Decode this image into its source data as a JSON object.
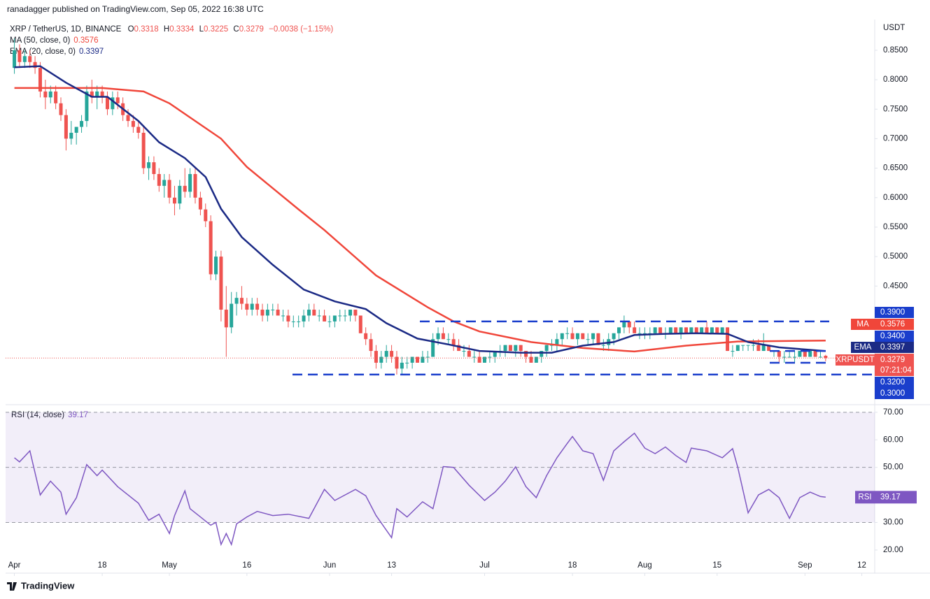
{
  "header": "ranadagger published on TradingView.com, Sep 05, 2022 16:38 UTC",
  "footer": "TradingView",
  "chart_data": {
    "type": "candlestick",
    "title": "XRP / TetherUS, 1D, BINANCE",
    "ohlc_labels": [
      "O",
      "H",
      "L",
      "C"
    ],
    "change": "−0.0038 (−1.15%)",
    "unit": "USDT",
    "up_color": "#26a69a",
    "down_color": "#ef5350",
    "ylim": [
      0.25,
      0.902
    ],
    "yticks": [
      {
        "value": 0.45,
        "label": "0.4500"
      },
      {
        "value": 0.5,
        "label": "0.5000"
      },
      {
        "value": 0.55,
        "label": "0.5500"
      },
      {
        "value": 0.6,
        "label": "0.6000"
      },
      {
        "value": 0.65,
        "label": "0.6500"
      },
      {
        "value": 0.7,
        "label": "0.7000"
      },
      {
        "value": 0.75,
        "label": "0.7500"
      },
      {
        "value": 0.8,
        "label": "0.8000"
      },
      {
        "value": 0.85,
        "label": "0.8500"
      }
    ],
    "xlim": [
      -1.7,
      166.5
    ],
    "xticks": [
      {
        "value": 0,
        "label": "Apr"
      },
      {
        "value": 17,
        "label": "18"
      },
      {
        "value": 30,
        "label": "May"
      },
      {
        "value": 45,
        "label": "16"
      },
      {
        "value": 61,
        "label": "Jun"
      },
      {
        "value": 73,
        "label": "13"
      },
      {
        "value": 91,
        "label": "Jul"
      },
      {
        "value": 108,
        "label": "18"
      },
      {
        "value": 122,
        "label": "Aug"
      },
      {
        "value": 136,
        "label": "15"
      },
      {
        "value": 153,
        "label": "Sep"
      },
      {
        "value": 164,
        "label": "12"
      }
    ],
    "grid": false,
    "ohlc": [
      [
        0.82,
        0.87,
        0.81,
        0.85
      ],
      [
        0.85,
        0.86,
        0.82,
        0.83
      ],
      [
        0.83,
        0.85,
        0.82,
        0.84
      ],
      [
        0.84,
        0.85,
        0.82,
        0.83
      ],
      [
        0.83,
        0.84,
        0.81,
        0.82
      ],
      [
        0.82,
        0.83,
        0.77,
        0.78
      ],
      [
        0.78,
        0.8,
        0.75,
        0.77
      ],
      [
        0.77,
        0.79,
        0.76,
        0.78
      ],
      [
        0.78,
        0.79,
        0.75,
        0.76
      ],
      [
        0.76,
        0.77,
        0.73,
        0.74
      ],
      [
        0.74,
        0.75,
        0.68,
        0.7
      ],
      [
        0.7,
        0.73,
        0.69,
        0.71
      ],
      [
        0.71,
        0.72,
        0.69,
        0.72
      ],
      [
        0.72,
        0.74,
        0.71,
        0.73
      ],
      [
        0.73,
        0.79,
        0.72,
        0.78
      ],
      [
        0.78,
        0.8,
        0.76,
        0.77
      ],
      [
        0.77,
        0.79,
        0.75,
        0.78
      ],
      [
        0.78,
        0.79,
        0.76,
        0.77
      ],
      [
        0.77,
        0.78,
        0.74,
        0.75
      ],
      [
        0.75,
        0.78,
        0.74,
        0.77
      ],
      [
        0.77,
        0.78,
        0.75,
        0.76
      ],
      [
        0.76,
        0.77,
        0.73,
        0.74
      ],
      [
        0.74,
        0.75,
        0.72,
        0.73
      ],
      [
        0.73,
        0.74,
        0.71,
        0.72
      ],
      [
        0.72,
        0.73,
        0.7,
        0.71
      ],
      [
        0.71,
        0.72,
        0.64,
        0.65
      ],
      [
        0.65,
        0.67,
        0.63,
        0.66
      ],
      [
        0.66,
        0.67,
        0.63,
        0.64
      ],
      [
        0.64,
        0.65,
        0.61,
        0.62
      ],
      [
        0.62,
        0.64,
        0.6,
        0.63
      ],
      [
        0.63,
        0.64,
        0.59,
        0.6
      ],
      [
        0.6,
        0.62,
        0.57,
        0.59
      ],
      [
        0.59,
        0.63,
        0.58,
        0.62
      ],
      [
        0.62,
        0.65,
        0.6,
        0.61
      ],
      [
        0.61,
        0.65,
        0.6,
        0.64
      ],
      [
        0.64,
        0.65,
        0.59,
        0.6
      ],
      [
        0.6,
        0.61,
        0.57,
        0.58
      ],
      [
        0.58,
        0.59,
        0.55,
        0.56
      ],
      [
        0.56,
        0.57,
        0.46,
        0.47
      ],
      [
        0.47,
        0.51,
        0.46,
        0.5
      ],
      [
        0.5,
        0.51,
        0.39,
        0.41
      ],
      [
        0.41,
        0.45,
        0.33,
        0.38
      ],
      [
        0.38,
        0.44,
        0.37,
        0.42
      ],
      [
        0.42,
        0.44,
        0.4,
        0.43
      ],
      [
        0.43,
        0.45,
        0.41,
        0.42
      ],
      [
        0.42,
        0.43,
        0.4,
        0.41
      ],
      [
        0.41,
        0.43,
        0.4,
        0.42
      ],
      [
        0.42,
        0.43,
        0.4,
        0.41
      ],
      [
        0.41,
        0.42,
        0.39,
        0.4
      ],
      [
        0.4,
        0.42,
        0.39,
        0.41
      ],
      [
        0.41,
        0.42,
        0.4,
        0.41
      ],
      [
        0.41,
        0.42,
        0.4,
        0.4
      ],
      [
        0.4,
        0.41,
        0.39,
        0.4
      ],
      [
        0.4,
        0.41,
        0.38,
        0.39
      ],
      [
        0.39,
        0.4,
        0.38,
        0.39
      ],
      [
        0.39,
        0.4,
        0.38,
        0.39
      ],
      [
        0.39,
        0.41,
        0.38,
        0.4
      ],
      [
        0.4,
        0.42,
        0.39,
        0.41
      ],
      [
        0.41,
        0.42,
        0.4,
        0.4
      ],
      [
        0.4,
        0.41,
        0.39,
        0.4
      ],
      [
        0.4,
        0.41,
        0.39,
        0.39
      ],
      [
        0.39,
        0.4,
        0.38,
        0.39
      ],
      [
        0.39,
        0.4,
        0.38,
        0.4
      ],
      [
        0.4,
        0.41,
        0.39,
        0.4
      ],
      [
        0.4,
        0.41,
        0.39,
        0.4
      ],
      [
        0.4,
        0.41,
        0.39,
        0.41
      ],
      [
        0.41,
        0.41,
        0.39,
        0.4
      ],
      [
        0.4,
        0.4,
        0.37,
        0.37
      ],
      [
        0.37,
        0.38,
        0.35,
        0.36
      ],
      [
        0.36,
        0.37,
        0.33,
        0.34
      ],
      [
        0.34,
        0.35,
        0.31,
        0.32
      ],
      [
        0.32,
        0.34,
        0.31,
        0.33
      ],
      [
        0.33,
        0.35,
        0.32,
        0.34
      ],
      [
        0.34,
        0.35,
        0.32,
        0.33
      ],
      [
        0.33,
        0.34,
        0.3,
        0.31
      ],
      [
        0.31,
        0.33,
        0.3,
        0.32
      ],
      [
        0.32,
        0.33,
        0.31,
        0.32
      ],
      [
        0.32,
        0.33,
        0.31,
        0.33
      ],
      [
        0.33,
        0.33,
        0.32,
        0.32
      ],
      [
        0.32,
        0.34,
        0.32,
        0.33
      ],
      [
        0.33,
        0.34,
        0.32,
        0.33
      ],
      [
        0.33,
        0.37,
        0.33,
        0.36
      ],
      [
        0.36,
        0.38,
        0.35,
        0.37
      ],
      [
        0.37,
        0.38,
        0.36,
        0.36
      ],
      [
        0.36,
        0.37,
        0.35,
        0.36
      ],
      [
        0.36,
        0.37,
        0.34,
        0.35
      ],
      [
        0.35,
        0.36,
        0.34,
        0.34
      ],
      [
        0.34,
        0.35,
        0.33,
        0.34
      ],
      [
        0.34,
        0.35,
        0.33,
        0.33
      ],
      [
        0.33,
        0.34,
        0.32,
        0.33
      ],
      [
        0.33,
        0.34,
        0.32,
        0.32
      ],
      [
        0.32,
        0.33,
        0.32,
        0.33
      ],
      [
        0.33,
        0.34,
        0.32,
        0.33
      ],
      [
        0.33,
        0.34,
        0.32,
        0.34
      ],
      [
        0.34,
        0.35,
        0.33,
        0.34
      ],
      [
        0.34,
        0.35,
        0.33,
        0.35
      ],
      [
        0.35,
        0.35,
        0.34,
        0.34
      ],
      [
        0.34,
        0.35,
        0.33,
        0.35
      ],
      [
        0.35,
        0.35,
        0.33,
        0.34
      ],
      [
        0.34,
        0.34,
        0.32,
        0.33
      ],
      [
        0.33,
        0.34,
        0.32,
        0.32
      ],
      [
        0.32,
        0.33,
        0.32,
        0.33
      ],
      [
        0.33,
        0.34,
        0.32,
        0.34
      ],
      [
        0.34,
        0.35,
        0.33,
        0.35
      ],
      [
        0.35,
        0.36,
        0.34,
        0.35
      ],
      [
        0.35,
        0.37,
        0.34,
        0.36
      ],
      [
        0.36,
        0.37,
        0.35,
        0.37
      ],
      [
        0.37,
        0.38,
        0.36,
        0.37
      ],
      [
        0.37,
        0.38,
        0.36,
        0.36
      ],
      [
        0.36,
        0.37,
        0.35,
        0.37
      ],
      [
        0.37,
        0.37,
        0.36,
        0.36
      ],
      [
        0.36,
        0.37,
        0.35,
        0.36
      ],
      [
        0.36,
        0.37,
        0.35,
        0.37
      ],
      [
        0.37,
        0.37,
        0.35,
        0.35
      ],
      [
        0.35,
        0.36,
        0.34,
        0.35
      ],
      [
        0.35,
        0.37,
        0.34,
        0.36
      ],
      [
        0.36,
        0.37,
        0.35,
        0.37
      ],
      [
        0.37,
        0.38,
        0.36,
        0.38
      ],
      [
        0.38,
        0.4,
        0.37,
        0.39
      ],
      [
        0.39,
        0.39,
        0.37,
        0.38
      ],
      [
        0.38,
        0.39,
        0.37,
        0.37
      ],
      [
        0.37,
        0.38,
        0.36,
        0.37
      ],
      [
        0.37,
        0.38,
        0.36,
        0.37
      ],
      [
        0.37,
        0.38,
        0.36,
        0.37
      ],
      [
        0.37,
        0.38,
        0.37,
        0.38
      ],
      [
        0.38,
        0.38,
        0.37,
        0.37
      ],
      [
        0.37,
        0.38,
        0.36,
        0.37
      ],
      [
        0.37,
        0.38,
        0.37,
        0.38
      ],
      [
        0.38,
        0.38,
        0.37,
        0.37
      ],
      [
        0.37,
        0.38,
        0.36,
        0.38
      ],
      [
        0.38,
        0.38,
        0.37,
        0.37
      ],
      [
        0.37,
        0.38,
        0.37,
        0.38
      ],
      [
        0.38,
        0.38,
        0.37,
        0.37
      ],
      [
        0.37,
        0.38,
        0.37,
        0.38
      ],
      [
        0.38,
        0.39,
        0.37,
        0.37
      ],
      [
        0.37,
        0.38,
        0.37,
        0.38
      ],
      [
        0.38,
        0.38,
        0.37,
        0.37
      ],
      [
        0.37,
        0.38,
        0.37,
        0.38
      ],
      [
        0.38,
        0.38,
        0.34,
        0.34
      ],
      [
        0.34,
        0.35,
        0.33,
        0.34
      ],
      [
        0.34,
        0.35,
        0.34,
        0.35
      ],
      [
        0.35,
        0.35,
        0.34,
        0.35
      ],
      [
        0.35,
        0.35,
        0.34,
        0.35
      ],
      [
        0.35,
        0.36,
        0.34,
        0.35
      ],
      [
        0.35,
        0.36,
        0.34,
        0.34
      ],
      [
        0.34,
        0.37,
        0.34,
        0.35
      ],
      [
        0.35,
        0.35,
        0.34,
        0.34
      ],
      [
        0.34,
        0.34,
        0.33,
        0.34
      ],
      [
        0.34,
        0.34,
        0.32,
        0.33
      ],
      [
        0.33,
        0.34,
        0.32,
        0.33
      ],
      [
        0.33,
        0.34,
        0.33,
        0.33
      ],
      [
        0.33,
        0.34,
        0.32,
        0.33
      ],
      [
        0.33,
        0.34,
        0.33,
        0.34
      ],
      [
        0.34,
        0.34,
        0.33,
        0.33
      ],
      [
        0.33,
        0.34,
        0.33,
        0.34
      ],
      [
        0.34,
        0.34,
        0.33,
        0.33
      ],
      [
        0.33,
        0.34,
        0.33,
        0.33
      ],
      [
        0.3318,
        0.3334,
        0.3225,
        0.3279
      ]
    ],
    "lines": [
      {
        "name": "MA (50, close, 0)",
        "short": "MA",
        "color": "#f0463a",
        "x": [
          0,
          17,
          25,
          30,
          40,
          45,
          55,
          60,
          70,
          80,
          85,
          90,
          100,
          110,
          120,
          130,
          140,
          157
        ],
        "values": [
          0.786,
          0.786,
          0.78,
          0.76,
          0.7,
          0.652,
          0.58,
          0.545,
          0.468,
          0.414,
          0.39,
          0.373,
          0.355,
          0.345,
          0.339,
          0.349,
          0.356,
          0.3576
        ]
      },
      {
        "name": "EMA (20, close, 0)",
        "short": "EMA",
        "color": "#1b2a85",
        "x": [
          0,
          5,
          10,
          15,
          18,
          24,
          28,
          33,
          37,
          40,
          44,
          50,
          56,
          62,
          68,
          72,
          78,
          84,
          90,
          98,
          104,
          110,
          116,
          120,
          126,
          132,
          138,
          142,
          148,
          157
        ],
        "values": [
          0.821,
          0.823,
          0.795,
          0.771,
          0.771,
          0.73,
          0.694,
          0.667,
          0.635,
          0.581,
          0.533,
          0.486,
          0.444,
          0.424,
          0.411,
          0.387,
          0.361,
          0.351,
          0.34,
          0.337,
          0.337,
          0.349,
          0.355,
          0.367,
          0.369,
          0.37,
          0.369,
          0.355,
          0.346,
          0.3397
        ]
      }
    ],
    "levels": [
      {
        "value": 0.39,
        "label": "0.3900"
      },
      {
        "value": 0.34,
        "label": "0.3400"
      },
      {
        "value": 0.32,
        "label": "0.3200"
      },
      {
        "value": 0.3,
        "label": "0.3000"
      }
    ],
    "level_color": "#1a3ecc",
    "symbol": "XRPUSDT",
    "countdown": "07:21:04",
    "rsi": {
      "name": "RSI (14, close)",
      "short": "RSI",
      "color": "#7e57c2",
      "ylim": [
        11.6,
        72.5
      ],
      "yticks": [
        {
          "value": 20,
          "label": "20.00"
        },
        {
          "value": 30,
          "label": "30.00"
        },
        {
          "value": 40,
          "label": "40.00"
        },
        {
          "value": 50,
          "label": "50.00"
        },
        {
          "value": 60,
          "label": "60.00"
        },
        {
          "value": 70,
          "label": "70.00"
        }
      ],
      "levels": [
        30,
        50,
        70
      ],
      "x": [
        0,
        1,
        3,
        5,
        7,
        9,
        10,
        12,
        14,
        16,
        17,
        20,
        24,
        26,
        28,
        30,
        31,
        33,
        34,
        36,
        38,
        39,
        40,
        41,
        42,
        43,
        45,
        47,
        50,
        53,
        57,
        60,
        62,
        66,
        68,
        70,
        73,
        74,
        76,
        79,
        81,
        83,
        85,
        88,
        91,
        93,
        95,
        97,
        99,
        101,
        103,
        105,
        107,
        108,
        110,
        112,
        114,
        116,
        118,
        120,
        122,
        124,
        126,
        128,
        130,
        131,
        134,
        137,
        139,
        140,
        142,
        144,
        146,
        148,
        150,
        152,
        154,
        156,
        157
      ],
      "values": [
        53.5,
        52,
        56,
        40,
        45,
        41,
        33,
        39,
        51,
        47,
        49,
        43,
        37,
        30.8,
        33,
        26,
        32.5,
        41.5,
        35,
        32,
        29,
        30,
        22,
        26,
        22,
        29.5,
        32,
        34,
        32.5,
        33,
        31.5,
        42,
        38,
        42,
        39.7,
        32.5,
        24.5,
        35,
        32,
        37.5,
        35,
        50.3,
        50,
        43.5,
        38,
        41,
        45,
        50.2,
        43,
        39,
        47,
        53.5,
        58.7,
        61.2,
        56,
        55,
        45.3,
        56,
        59.3,
        62.4,
        57,
        55,
        57.4,
        54.3,
        51.8,
        57,
        56,
        53.5,
        56.8,
        50,
        33.5,
        40,
        42,
        39,
        31.5,
        39,
        41,
        39.4,
        39.17
      ]
    }
  }
}
